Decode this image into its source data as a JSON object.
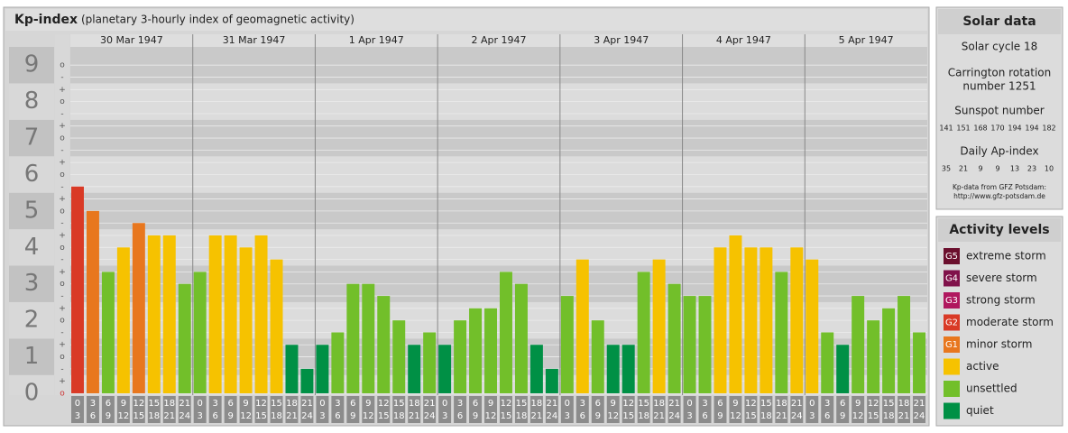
{
  "chart_data": {
    "type": "bar",
    "title": "Kp-index",
    "subtitle": "(planetary 3-hourly index of geomagnetic activity)",
    "days": [
      "30 Mar 1947",
      "31 Mar 1947",
      "1 Apr 1947",
      "2 Apr 1947",
      "3 Apr 1947",
      "4 Apr 1947",
      "5 Apr 1947"
    ],
    "hours": [
      [
        "0",
        "3"
      ],
      [
        "3",
        "6"
      ],
      [
        "6",
        "9"
      ],
      [
        "9",
        "12"
      ],
      [
        "12",
        "15"
      ],
      [
        "15",
        "18"
      ],
      [
        "18",
        "21"
      ],
      [
        "21",
        "24"
      ]
    ],
    "values": [
      5.67,
      5,
      3.33,
      4,
      4.67,
      4.33,
      4.33,
      3,
      3.33,
      4.33,
      4.33,
      4,
      4.33,
      3.67,
      1.33,
      0.67,
      1.33,
      1.67,
      3,
      3,
      2.67,
      2,
      1.33,
      1.67,
      1.33,
      2,
      2.33,
      2.33,
      3.33,
      3,
      1.33,
      0.67,
      2.67,
      3.67,
      2,
      1.33,
      1.33,
      3.33,
      3.67,
      3,
      2.67,
      2.67,
      4,
      4.33,
      4,
      4,
      3.33,
      4,
      3.67,
      1.67,
      1.33,
      2.67,
      2,
      2.33,
      2.67,
      1.67
    ],
    "colors": [
      "#d93a26",
      "#e8771e",
      "#72bf2a",
      "#f6c200",
      "#e8771e",
      "#f6c200",
      "#f6c200",
      "#72bf2a",
      "#72bf2a",
      "#f6c200",
      "#f6c200",
      "#f6c200",
      "#f6c200",
      "#f6c200",
      "#009045",
      "#009045",
      "#009045",
      "#72bf2a",
      "#72bf2a",
      "#72bf2a",
      "#72bf2a",
      "#72bf2a",
      "#009045",
      "#72bf2a",
      "#009045",
      "#72bf2a",
      "#72bf2a",
      "#72bf2a",
      "#72bf2a",
      "#72bf2a",
      "#009045",
      "#009045",
      "#72bf2a",
      "#f6c200",
      "#72bf2a",
      "#009045",
      "#009045",
      "#72bf2a",
      "#f6c200",
      "#72bf2a",
      "#72bf2a",
      "#72bf2a",
      "#f6c200",
      "#f6c200",
      "#f6c200",
      "#f6c200",
      "#72bf2a",
      "#f6c200",
      "#f6c200",
      "#72bf2a",
      "#009045",
      "#72bf2a",
      "#72bf2a",
      "#72bf2a",
      "#72bf2a",
      "#72bf2a"
    ],
    "ylim": [
      -0.05,
      9.5
    ],
    "yticks": [
      0,
      1,
      2,
      3,
      4,
      5,
      6,
      7,
      8,
      9
    ],
    "minor_ticks": [
      {
        "value": 0,
        "label": "o"
      },
      {
        "value": 0.33,
        "label": "+"
      },
      {
        "value": 0.67,
        "label": "-"
      },
      {
        "value": 1,
        "label": "o"
      },
      {
        "value": 1.33,
        "label": "+"
      },
      {
        "value": 1.67,
        "label": "-"
      },
      {
        "value": 2,
        "label": "o"
      },
      {
        "value": 2.33,
        "label": "+"
      },
      {
        "value": 2.67,
        "label": "-"
      },
      {
        "value": 3,
        "label": "o"
      },
      {
        "value": 3.33,
        "label": "+"
      },
      {
        "value": 3.67,
        "label": "-"
      },
      {
        "value": 4,
        "label": "o"
      },
      {
        "value": 4.33,
        "label": "+"
      },
      {
        "value": 4.67,
        "label": "-"
      },
      {
        "value": 5,
        "label": "o"
      },
      {
        "value": 5.33,
        "label": "+"
      },
      {
        "value": 5.67,
        "label": "-"
      },
      {
        "value": 6,
        "label": "o"
      },
      {
        "value": 6.33,
        "label": "+"
      },
      {
        "value": 6.67,
        "label": "-"
      },
      {
        "value": 7,
        "label": "o"
      },
      {
        "value": 7.33,
        "label": "+"
      },
      {
        "value": 7.67,
        "label": "-"
      },
      {
        "value": 8,
        "label": "o"
      },
      {
        "value": 8.33,
        "label": "+"
      },
      {
        "value": 8.67,
        "label": "-"
      },
      {
        "value": 9,
        "label": "o"
      }
    ]
  },
  "solar_data": {
    "title": "Solar data",
    "cycle": "Solar cycle 18",
    "carrington": [
      "Carrington rotation",
      "number 1251"
    ],
    "sunspot_title": "Sunspot number",
    "sunspot": [
      "141",
      "151",
      "168",
      "170",
      "194",
      "194",
      "182"
    ],
    "ap_title": "Daily Ap-index",
    "ap": [
      "35",
      "21",
      "9",
      "9",
      "13",
      "23",
      "10"
    ],
    "source": [
      "Kp-data from GFZ Potsdam:",
      "http://www.gfz-potsdam.de"
    ]
  },
  "activity_levels": {
    "title": "Activity levels",
    "items": [
      {
        "code": "G5",
        "label": "extreme storm",
        "color": "#6b0f2d"
      },
      {
        "code": "G4",
        "label": "severe storm",
        "color": "#80114a"
      },
      {
        "code": "G3",
        "label": "strong storm",
        "color": "#b0175e"
      },
      {
        "code": "G2",
        "label": "moderate storm",
        "color": "#d93a26"
      },
      {
        "code": "G1",
        "label": "minor storm",
        "color": "#e8771e"
      },
      {
        "label": "active",
        "color": "#f6c200"
      },
      {
        "label": "unsettled",
        "color": "#72bf2a"
      },
      {
        "label": "quiet",
        "color": "#009045"
      }
    ]
  }
}
